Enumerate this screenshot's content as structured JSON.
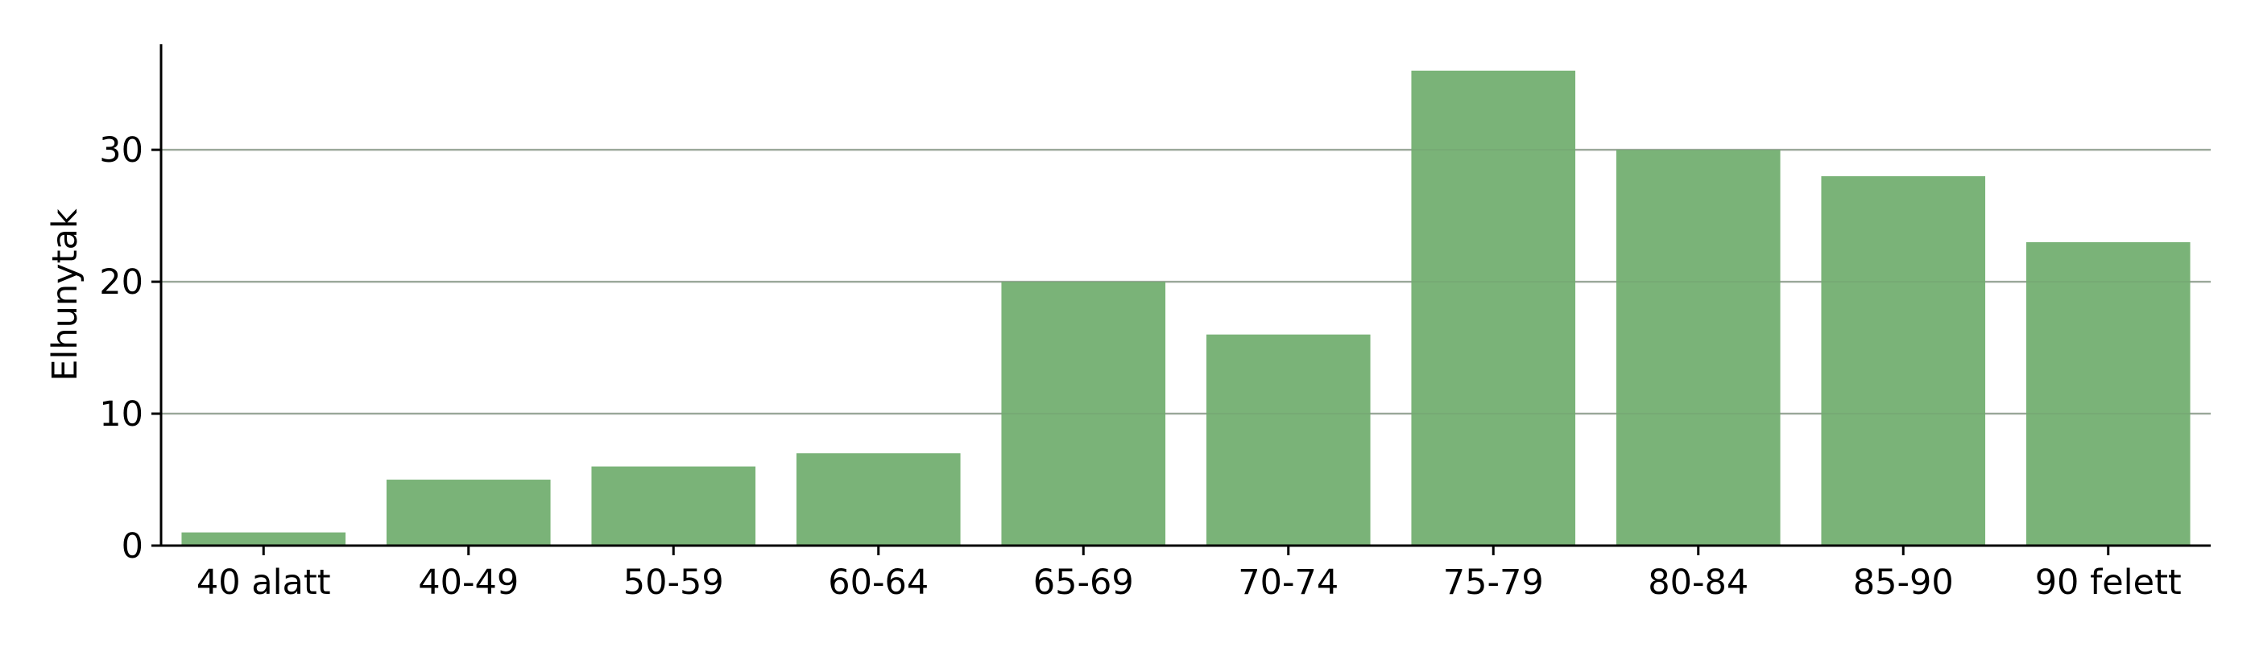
{
  "chart_data": {
    "type": "bar",
    "title": "",
    "xlabel": "",
    "ylabel": "Elhunytak",
    "categories": [
      "40 alatt",
      "40-49",
      "50-59",
      "60-64",
      "65-69",
      "70-74",
      "75-79",
      "80-84",
      "85-90",
      "90 felett"
    ],
    "values": [
      1,
      5,
      6,
      7,
      20,
      16,
      36,
      30,
      28,
      23
    ],
    "ylim": [
      0,
      38
    ],
    "yticks": [
      0,
      10,
      20,
      30
    ],
    "grid": "horizontal",
    "bar_color": "#7ab378",
    "grid_color": "#b0b0b0",
    "legend": "none"
  }
}
